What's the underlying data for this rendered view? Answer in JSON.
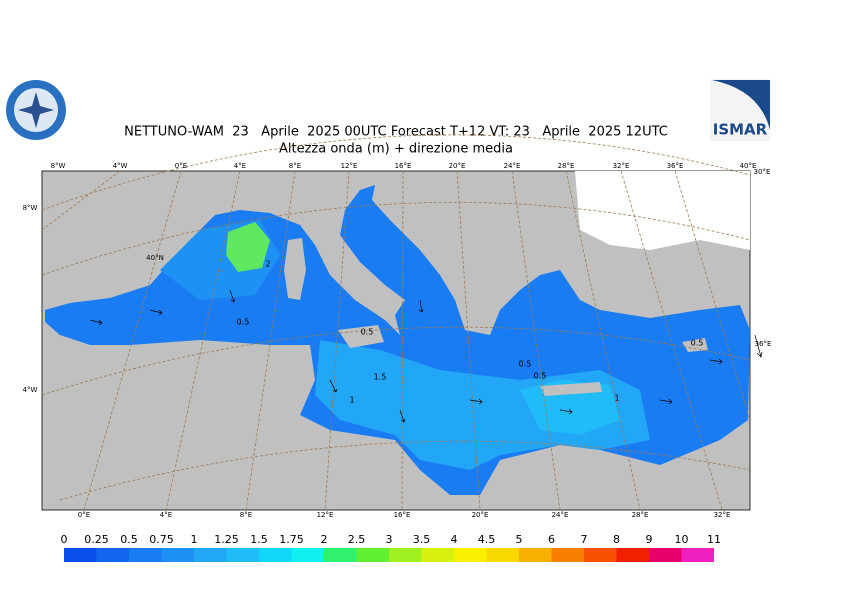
{
  "header": {
    "title": "NETTUNO-WAM  23   Aprile  2025 00UTC Forecast T+12 VT: 23   Aprile  2025 12UTC",
    "subtitle": "Altezza onda (m) + direzione media"
  },
  "logo": {
    "text": "ISMAR"
  },
  "map": {
    "top_labels": [
      "8°W",
      "4°W",
      "0°E",
      "4°E",
      "8°E",
      "12°E",
      "16°E",
      "20°E",
      "24°E",
      "28°E",
      "32°E",
      "36°E",
      "40°E",
      "30°E"
    ],
    "bottom_labels": [
      "0°E",
      "4°E",
      "8°E",
      "12°E",
      "16°E",
      "20°E",
      "24°E",
      "28°E",
      "32°E"
    ],
    "left_labels": [
      "8°W",
      "40°N",
      "4°W"
    ],
    "right_labels": [
      "36°E"
    ],
    "contour_labels": [
      "2",
      "0.5",
      "0.5",
      "1.5",
      "1",
      "0.5",
      "0.5",
      "1",
      "0.5"
    ]
  },
  "colorbar": {
    "levels": [
      0,
      0.25,
      0.5,
      0.75,
      1,
      1.25,
      1.5,
      1.75,
      2,
      2.5,
      3,
      3.5,
      4,
      4.5,
      5,
      6,
      7,
      8,
      9,
      10,
      11
    ],
    "colors": [
      "#0a50ec",
      "#1466f0",
      "#1a7cf2",
      "#1e92f4",
      "#22a6f6",
      "#20bcf8",
      "#10d8f8",
      "#10f0f0",
      "#30f070",
      "#60f030",
      "#a0f020",
      "#d8f010",
      "#f8f000",
      "#f8d800",
      "#f8b000",
      "#f88000",
      "#f85000",
      "#f02000",
      "#e8006a",
      "#f020c0"
    ]
  }
}
